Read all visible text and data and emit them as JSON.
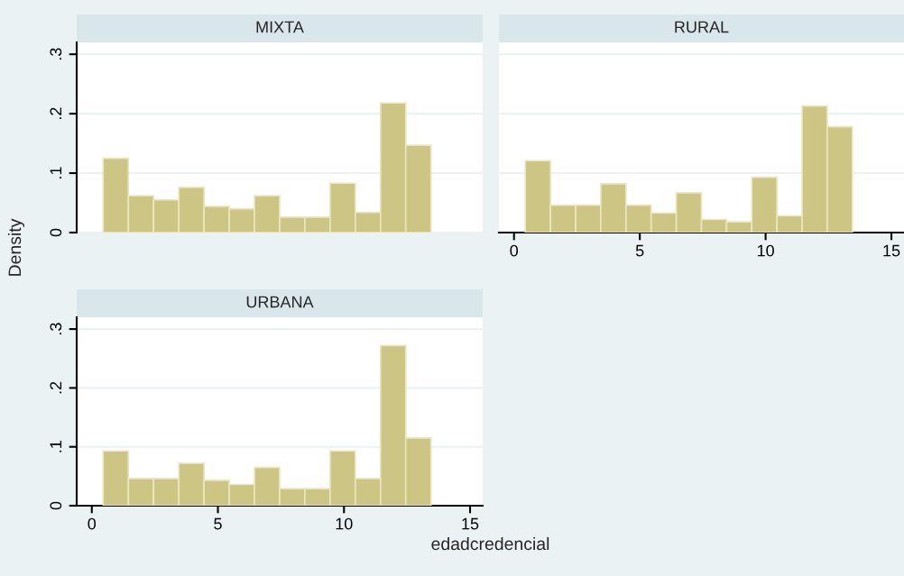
{
  "chart_data": [
    {
      "type": "histogram",
      "title": "MIXTA",
      "bins": [
        0.45,
        1.45,
        2.45,
        3.45,
        4.45,
        5.45,
        6.45,
        7.45,
        8.45,
        9.45,
        10.45,
        11.45,
        12.45,
        13.45
      ],
      "values": [
        0.125,
        0.062,
        0.055,
        0.076,
        0.044,
        0.04,
        0.062,
        0.026,
        0.026,
        0.083,
        0.034,
        0.218,
        0.147
      ],
      "color": "#cdc583",
      "xlim": [
        -0.6,
        15.5
      ],
      "ylim": [
        0,
        0.32
      ],
      "yticks": [
        0,
        {
          "value": 0.1,
          "label": ".1"
        },
        {
          "value": 0.2,
          "label": ".2"
        },
        {
          "value": 0.3,
          "label": ".3"
        }
      ],
      "grid": "y",
      "tick_labels": "y"
    },
    {
      "type": "histogram",
      "title": "RURAL",
      "bins": [
        0.45,
        1.45,
        2.45,
        3.45,
        4.45,
        5.45,
        6.45,
        7.45,
        8.45,
        9.45,
        10.45,
        11.45,
        12.45,
        13.45
      ],
      "values": [
        0.121,
        0.046,
        0.046,
        0.082,
        0.046,
        0.033,
        0.067,
        0.022,
        0.018,
        0.093,
        0.028,
        0.213,
        0.178
      ],
      "color": "#cdc583",
      "xlim": [
        -0.6,
        15.5
      ],
      "xticks": [
        0,
        5,
        10,
        15
      ],
      "ylim": [
        0,
        0.32
      ],
      "grid": "y",
      "tick_labels": "x"
    },
    {
      "type": "histogram",
      "title": "URBANA",
      "xlabel": "edadcredencial",
      "ylabel": "Density",
      "bins": [
        0.45,
        1.45,
        2.45,
        3.45,
        4.45,
        5.45,
        6.45,
        7.45,
        8.45,
        9.45,
        10.45,
        11.45,
        12.45,
        13.45
      ],
      "values": [
        0.093,
        0.046,
        0.046,
        0.072,
        0.043,
        0.036,
        0.065,
        0.029,
        0.029,
        0.093,
        0.046,
        0.272,
        0.115
      ],
      "color": "#cdc583",
      "xlim": [
        -0.6,
        15.5
      ],
      "xticks": [
        0,
        5,
        10,
        15
      ],
      "ylim": [
        0,
        0.32
      ],
      "yticks": [
        0,
        {
          "value": 0.1,
          "label": ".1"
        },
        {
          "value": 0.2,
          "label": ".2"
        },
        {
          "value": 0.3,
          "label": ".3"
        }
      ],
      "grid": "y"
    }
  ]
}
